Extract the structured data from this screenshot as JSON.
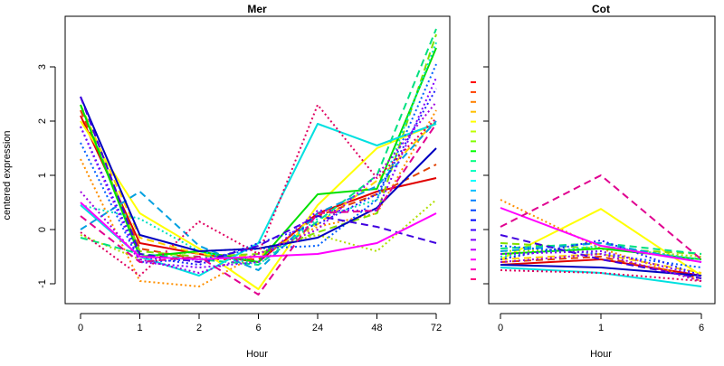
{
  "chart_data": {
    "type": "line",
    "ylabel": "centered expression",
    "ylim": [
      -1.4,
      3.9
    ],
    "yticks": [
      -1,
      0,
      1,
      2,
      3
    ],
    "grid": false,
    "legend": "none",
    "colors": [
      "#FF0000",
      "#FF4000",
      "#FF8000",
      "#FFBF00",
      "#FFFF00",
      "#BFFF00",
      "#80FF00",
      "#00FF00",
      "#00FF80",
      "#00FFBF",
      "#00FFFF",
      "#00BFFF",
      "#0080FF",
      "#0040FF",
      "#0000FF",
      "#4000FF",
      "#8000FF",
      "#BF00FF",
      "#FF00FF",
      "#FF00BF",
      "#FF0080"
    ],
    "panels": [
      {
        "title": "Mer",
        "xlabel": "Hour",
        "categories": [
          "0",
          "1",
          "2",
          "6",
          "24",
          "48",
          "72"
        ],
        "series": [
          {
            "color": "#E00000",
            "dash": "solid",
            "values": [
              2.1,
              -0.25,
              -0.45,
              -0.6,
              0.3,
              0.7,
              0.95
            ]
          },
          {
            "color": "#E04000",
            "dash": "dashed",
            "values": [
              2.2,
              -0.35,
              -0.55,
              -0.55,
              0.25,
              0.65,
              1.2
            ]
          },
          {
            "color": "#FF9000",
            "dash": "dotted",
            "values": [
              1.3,
              -0.95,
              -1.05,
              -0.45,
              0.05,
              0.3,
              2.2
            ]
          },
          {
            "color": "#FFD000",
            "dash": "dashed",
            "values": [
              2.3,
              -0.15,
              -0.45,
              -0.5,
              0.1,
              0.9,
              2.0
            ]
          },
          {
            "color": "#FFFF00",
            "dash": "solid",
            "values": [
              2.0,
              0.3,
              -0.35,
              -1.1,
              0.45,
              1.5,
              1.95
            ]
          },
          {
            "color": "#B0E000",
            "dash": "dotted",
            "values": [
              -0.1,
              -0.55,
              -0.4,
              -0.35,
              -0.1,
              -0.4,
              0.55
            ]
          },
          {
            "color": "#80E000",
            "dash": "dashed",
            "values": [
              2.3,
              -0.4,
              -0.5,
              -0.45,
              -0.05,
              0.3,
              3.6
            ]
          },
          {
            "color": "#00E000",
            "dash": "solid",
            "values": [
              2.3,
              -0.5,
              -0.4,
              -0.6,
              0.65,
              0.75,
              3.35
            ]
          },
          {
            "color": "#00E080",
            "dash": "dashed",
            "values": [
              -0.15,
              -0.45,
              -0.55,
              -0.65,
              0.15,
              1.0,
              3.7
            ]
          },
          {
            "color": "#00E0C0",
            "dash": "dotted",
            "values": [
              0.45,
              0.2,
              -0.4,
              -0.65,
              0.2,
              0.55,
              3.45
            ]
          },
          {
            "color": "#00E0E0",
            "dash": "solid",
            "values": [
              0.45,
              -0.5,
              -0.85,
              -0.25,
              1.95,
              1.55,
              1.95
            ]
          },
          {
            "color": "#00A0E0",
            "dash": "dashed",
            "values": [
              0.0,
              0.7,
              -0.3,
              -0.75,
              0.3,
              0.8,
              2.0
            ]
          },
          {
            "color": "#0060FF",
            "dash": "dotted",
            "values": [
              1.6,
              -0.6,
              -0.55,
              -0.35,
              -0.3,
              0.55,
              3.05
            ]
          },
          {
            "color": "#2020FF",
            "dash": "dotted",
            "values": [
              1.9,
              -0.5,
              -0.65,
              -0.25,
              0.1,
              0.65,
              2.6
            ]
          },
          {
            "color": "#0000C0",
            "dash": "solid",
            "values": [
              2.45,
              -0.1,
              -0.4,
              -0.35,
              -0.15,
              0.4,
              1.5
            ]
          },
          {
            "color": "#4000E0",
            "dash": "dashed",
            "values": [
              2.45,
              -0.45,
              -0.6,
              -0.3,
              0.25,
              0.05,
              -0.25
            ]
          },
          {
            "color": "#8000FF",
            "dash": "dotted",
            "values": [
              1.9,
              -0.6,
              -0.7,
              -0.6,
              0.35,
              0.35,
              2.8
            ]
          },
          {
            "color": "#A000E0",
            "dash": "dotted",
            "values": [
              0.7,
              -0.55,
              -0.8,
              -0.45,
              0.0,
              1.0,
              2.35
            ]
          },
          {
            "color": "#FF00FF",
            "dash": "solid",
            "values": [
              0.5,
              -0.5,
              -0.55,
              -0.5,
              -0.45,
              -0.25,
              0.3
            ]
          },
          {
            "color": "#E00090",
            "dash": "dashed",
            "values": [
              0.25,
              -0.6,
              -0.5,
              -1.2,
              0.3,
              0.35,
              1.95
            ]
          },
          {
            "color": "#E00060",
            "dash": "dotted",
            "values": [
              -0.05,
              -0.85,
              0.15,
              -0.45,
              2.3,
              0.95,
              2.05
            ]
          }
        ]
      },
      {
        "title": "Cot",
        "xlabel": "Hour",
        "categories": [
          "0",
          "1",
          "6"
        ],
        "series": [
          {
            "color": "#E00000",
            "dash": "solid",
            "values": [
              -0.65,
              -0.55,
              -0.85
            ]
          },
          {
            "color": "#E04000",
            "dash": "dashed",
            "values": [
              -0.6,
              -0.5,
              -0.9
            ]
          },
          {
            "color": "#FF9000",
            "dash": "dotted",
            "values": [
              0.55,
              -0.35,
              -0.95
            ]
          },
          {
            "color": "#FFD000",
            "dash": "dashed",
            "values": [
              -0.55,
              -0.45,
              -0.8
            ]
          },
          {
            "color": "#FFFF00",
            "dash": "solid",
            "values": [
              -0.55,
              0.38,
              -0.85
            ]
          },
          {
            "color": "#B0E000",
            "dash": "dotted",
            "values": [
              -0.4,
              -0.35,
              -0.5
            ]
          },
          {
            "color": "#80E000",
            "dash": "dashed",
            "values": [
              -0.25,
              -0.35,
              -0.45
            ]
          },
          {
            "color": "#00E000",
            "dash": "solid",
            "values": [
              -0.45,
              -0.35,
              -0.55
            ]
          },
          {
            "color": "#00E080",
            "dash": "dashed",
            "values": [
              -0.35,
              -0.25,
              -0.45
            ]
          },
          {
            "color": "#00E0C0",
            "dash": "dotted",
            "values": [
              -0.5,
              -0.3,
              -0.55
            ]
          },
          {
            "color": "#00E0E0",
            "dash": "solid",
            "values": [
              -0.7,
              -0.8,
              -1.05
            ]
          },
          {
            "color": "#00A0E0",
            "dash": "dashed",
            "values": [
              -0.4,
              -0.25,
              -0.6
            ]
          },
          {
            "color": "#0060FF",
            "dash": "dotted",
            "values": [
              -0.3,
              -0.45,
              -0.7
            ]
          },
          {
            "color": "#2020FF",
            "dash": "dotted",
            "values": [
              -0.55,
              -0.2,
              -0.85
            ]
          },
          {
            "color": "#0000C0",
            "dash": "solid",
            "values": [
              -0.65,
              -0.7,
              -0.85
            ]
          },
          {
            "color": "#4000E0",
            "dash": "dashed",
            "values": [
              -0.1,
              -0.55,
              -0.9
            ]
          },
          {
            "color": "#8000FF",
            "dash": "dotted",
            "values": [
              -0.45,
              -0.4,
              -0.85
            ]
          },
          {
            "color": "#A000E0",
            "dash": "dotted",
            "values": [
              -0.6,
              -0.45,
              -0.95
            ]
          },
          {
            "color": "#FF00FF",
            "dash": "solid",
            "values": [
              0.4,
              -0.3,
              -0.6
            ]
          },
          {
            "color": "#E00090",
            "dash": "dashed",
            "values": [
              0.05,
              1.0,
              -0.55
            ]
          },
          {
            "color": "#E00060",
            "dash": "dotted",
            "values": [
              -0.75,
              -0.8,
              -0.95
            ]
          }
        ]
      }
    ]
  }
}
